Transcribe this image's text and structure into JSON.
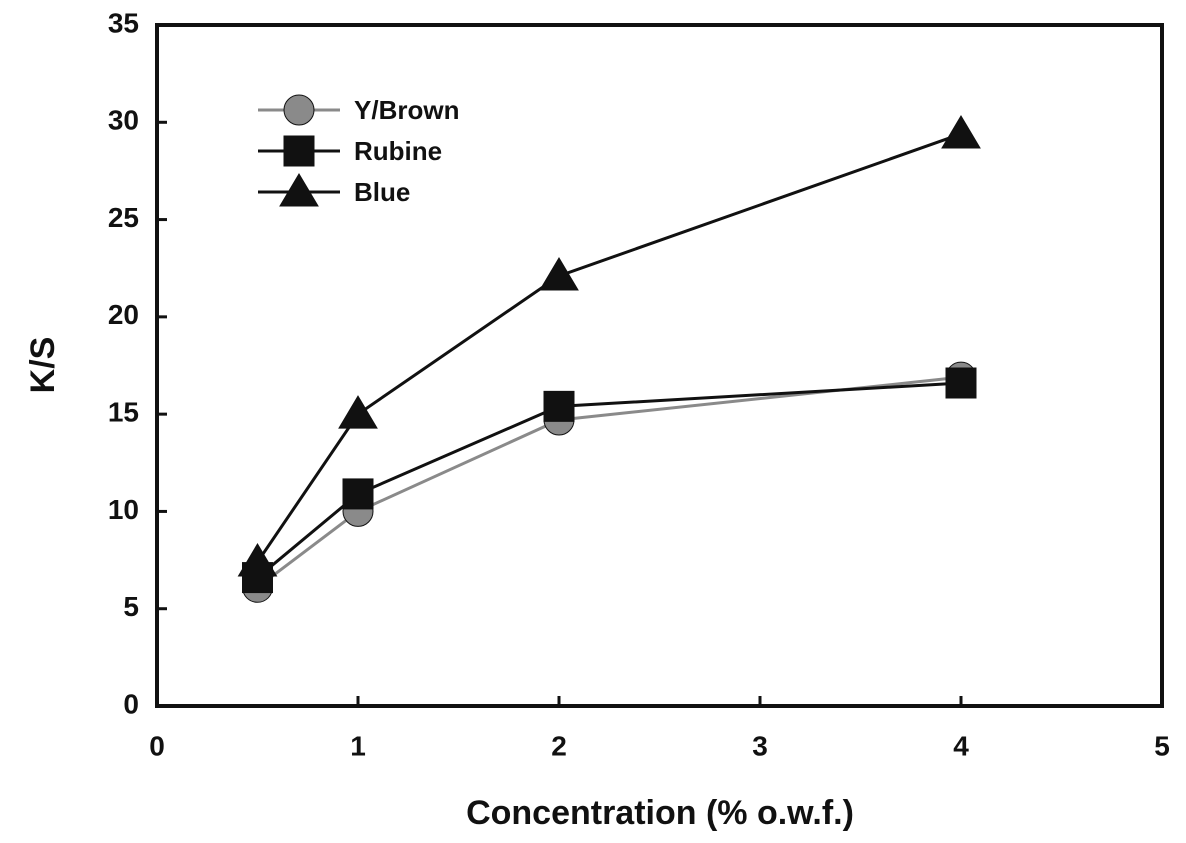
{
  "chart_data": {
    "type": "line",
    "xlabel": "Concentration (% o.w.f.)",
    "ylabel": "K/S",
    "x": [
      0.5,
      1,
      2,
      4
    ],
    "series": [
      {
        "name": "Y/Brown",
        "color": "#8a8a8a",
        "marker": "circle",
        "values": [
          6.1,
          10.0,
          14.7,
          16.9
        ]
      },
      {
        "name": "Rubine",
        "color": "#111111",
        "marker": "square",
        "values": [
          6.6,
          10.9,
          15.4,
          16.6
        ]
      },
      {
        "name": "Blue",
        "color": "#111111",
        "marker": "triangle",
        "values": [
          7.4,
          15.0,
          22.1,
          29.4
        ]
      }
    ],
    "xlim": [
      0,
      5
    ],
    "xticks": [
      0,
      1,
      2,
      3,
      4,
      5
    ],
    "ylim": [
      0,
      35
    ],
    "yticks": [
      0,
      5,
      10,
      15,
      20,
      25,
      30,
      35
    ],
    "legend": "upper left",
    "grid": false
  }
}
